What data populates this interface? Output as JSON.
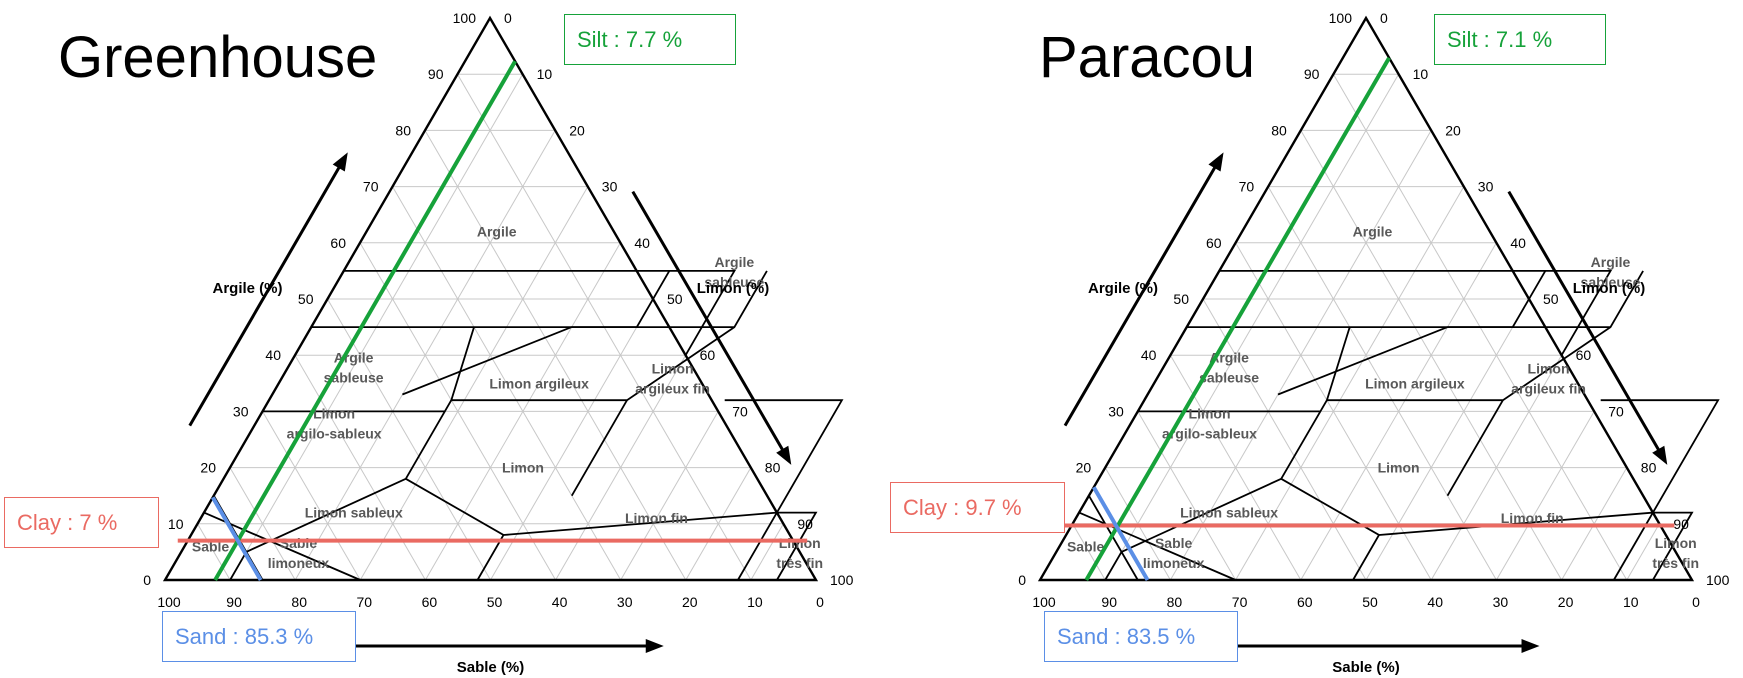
{
  "panels": [
    {
      "title": "Greenhouse",
      "annotations": {
        "silt": "Silt : 7.7 %",
        "clay": "Clay : 7 %",
        "sand": "Sand : 85.3 %"
      },
      "sample": {
        "clay": 7,
        "silt": 7.7,
        "sand": 85.3
      }
    },
    {
      "title": "Paracou",
      "annotations": {
        "silt": "Silt : 7.1 %",
        "clay": "Clay : 9.7 %",
        "sand": "Sand : 83.5 %"
      },
      "sample": {
        "clay": 9.7,
        "silt": 7.1,
        "sand": 83.5
      }
    }
  ],
  "axes": {
    "argile_label": "Argile (%)",
    "limon_label": "Limon (%)",
    "sable_label": "Sable (%)",
    "ticks": [
      "0",
      "10",
      "20",
      "30",
      "40",
      "50",
      "60",
      "70",
      "80",
      "90",
      "100"
    ]
  },
  "classes": [
    {
      "label": "Argile"
    },
    {
      "label": "Argile",
      "label2": "sableuse"
    },
    {
      "label": "Argile",
      "label2": "sableuse"
    },
    {
      "label": "Limon argileux"
    },
    {
      "label": "Limon",
      "label2": "argileux fin"
    },
    {
      "label": "Limon",
      "label2": "argilo-sableux"
    },
    {
      "label": "Limon"
    },
    {
      "label": "Limon sableux"
    },
    {
      "label": "Limon fin"
    },
    {
      "label": "Sable"
    },
    {
      "label": "Sable",
      "label2": "limoneux"
    },
    {
      "label": "Limon",
      "label2": "très fin"
    }
  ],
  "colors": {
    "frame": "#000000",
    "grid": "#c8c8c8",
    "class_label": "#595959",
    "silt_line": "#16a23a",
    "clay_line": "#ea6a62",
    "sand_line": "#5b8fe6"
  }
}
